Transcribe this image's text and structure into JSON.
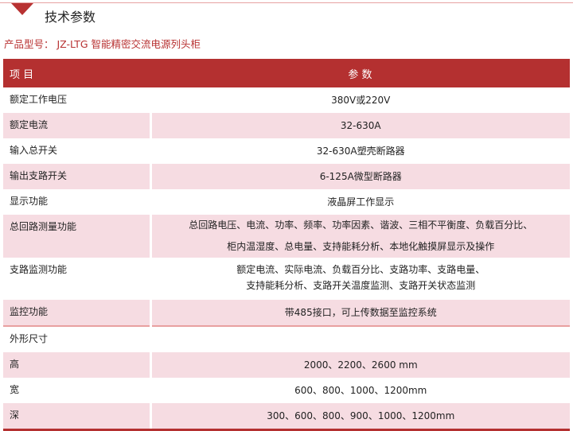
{
  "section_title": "技术参数",
  "product_line": "产品型号： JZ-LTG 智能精密交流电源列头柜",
  "table": {
    "headers": [
      "项 目",
      "参 数"
    ],
    "rows": [
      {
        "item": "额定工作电压",
        "value": [
          "380V或220V"
        ]
      },
      {
        "item": "额定电流",
        "value": [
          "32-630A"
        ]
      },
      {
        "item": "输入总开关",
        "value": [
          "32-630A塑壳断路器"
        ]
      },
      {
        "item": "输出支路开关",
        "value": [
          "6-125A微型断路器"
        ]
      },
      {
        "item": "显示功能",
        "value": [
          "液晶屏工作显示"
        ]
      },
      {
        "item": "总回路测量功能",
        "value": [
          "总回路电压、电流、功率、频率、功率因素、谐波、三相不平衡度、负载百分比、",
          "柜内温湿度、总电量、支持能耗分析、本地化触摸屏显示及操作"
        ]
      },
      {
        "item": "支路监测功能",
        "value": [
          "额定电流、实际电流、负载百分比、支路功率、支路电量、",
          "支持能耗分析、支路开关温度监测、支路开关状态监测"
        ]
      },
      {
        "item": "监控功能",
        "value": [
          "带485接口，可上传数据至监控系统"
        ]
      },
      {
        "item": "外形尺寸",
        "value": [
          ""
        ]
      },
      {
        "item": "高",
        "value": [
          "2000、2200、2600 mm"
        ]
      },
      {
        "item": "宽",
        "value": [
          "600、800、1000、1200mm"
        ]
      },
      {
        "item": "深",
        "value": [
          "300、600、800、900、1000、1200mm"
        ]
      }
    ]
  },
  "colors": {
    "accent": "#b43030",
    "row_alt": "#f6dce2"
  }
}
